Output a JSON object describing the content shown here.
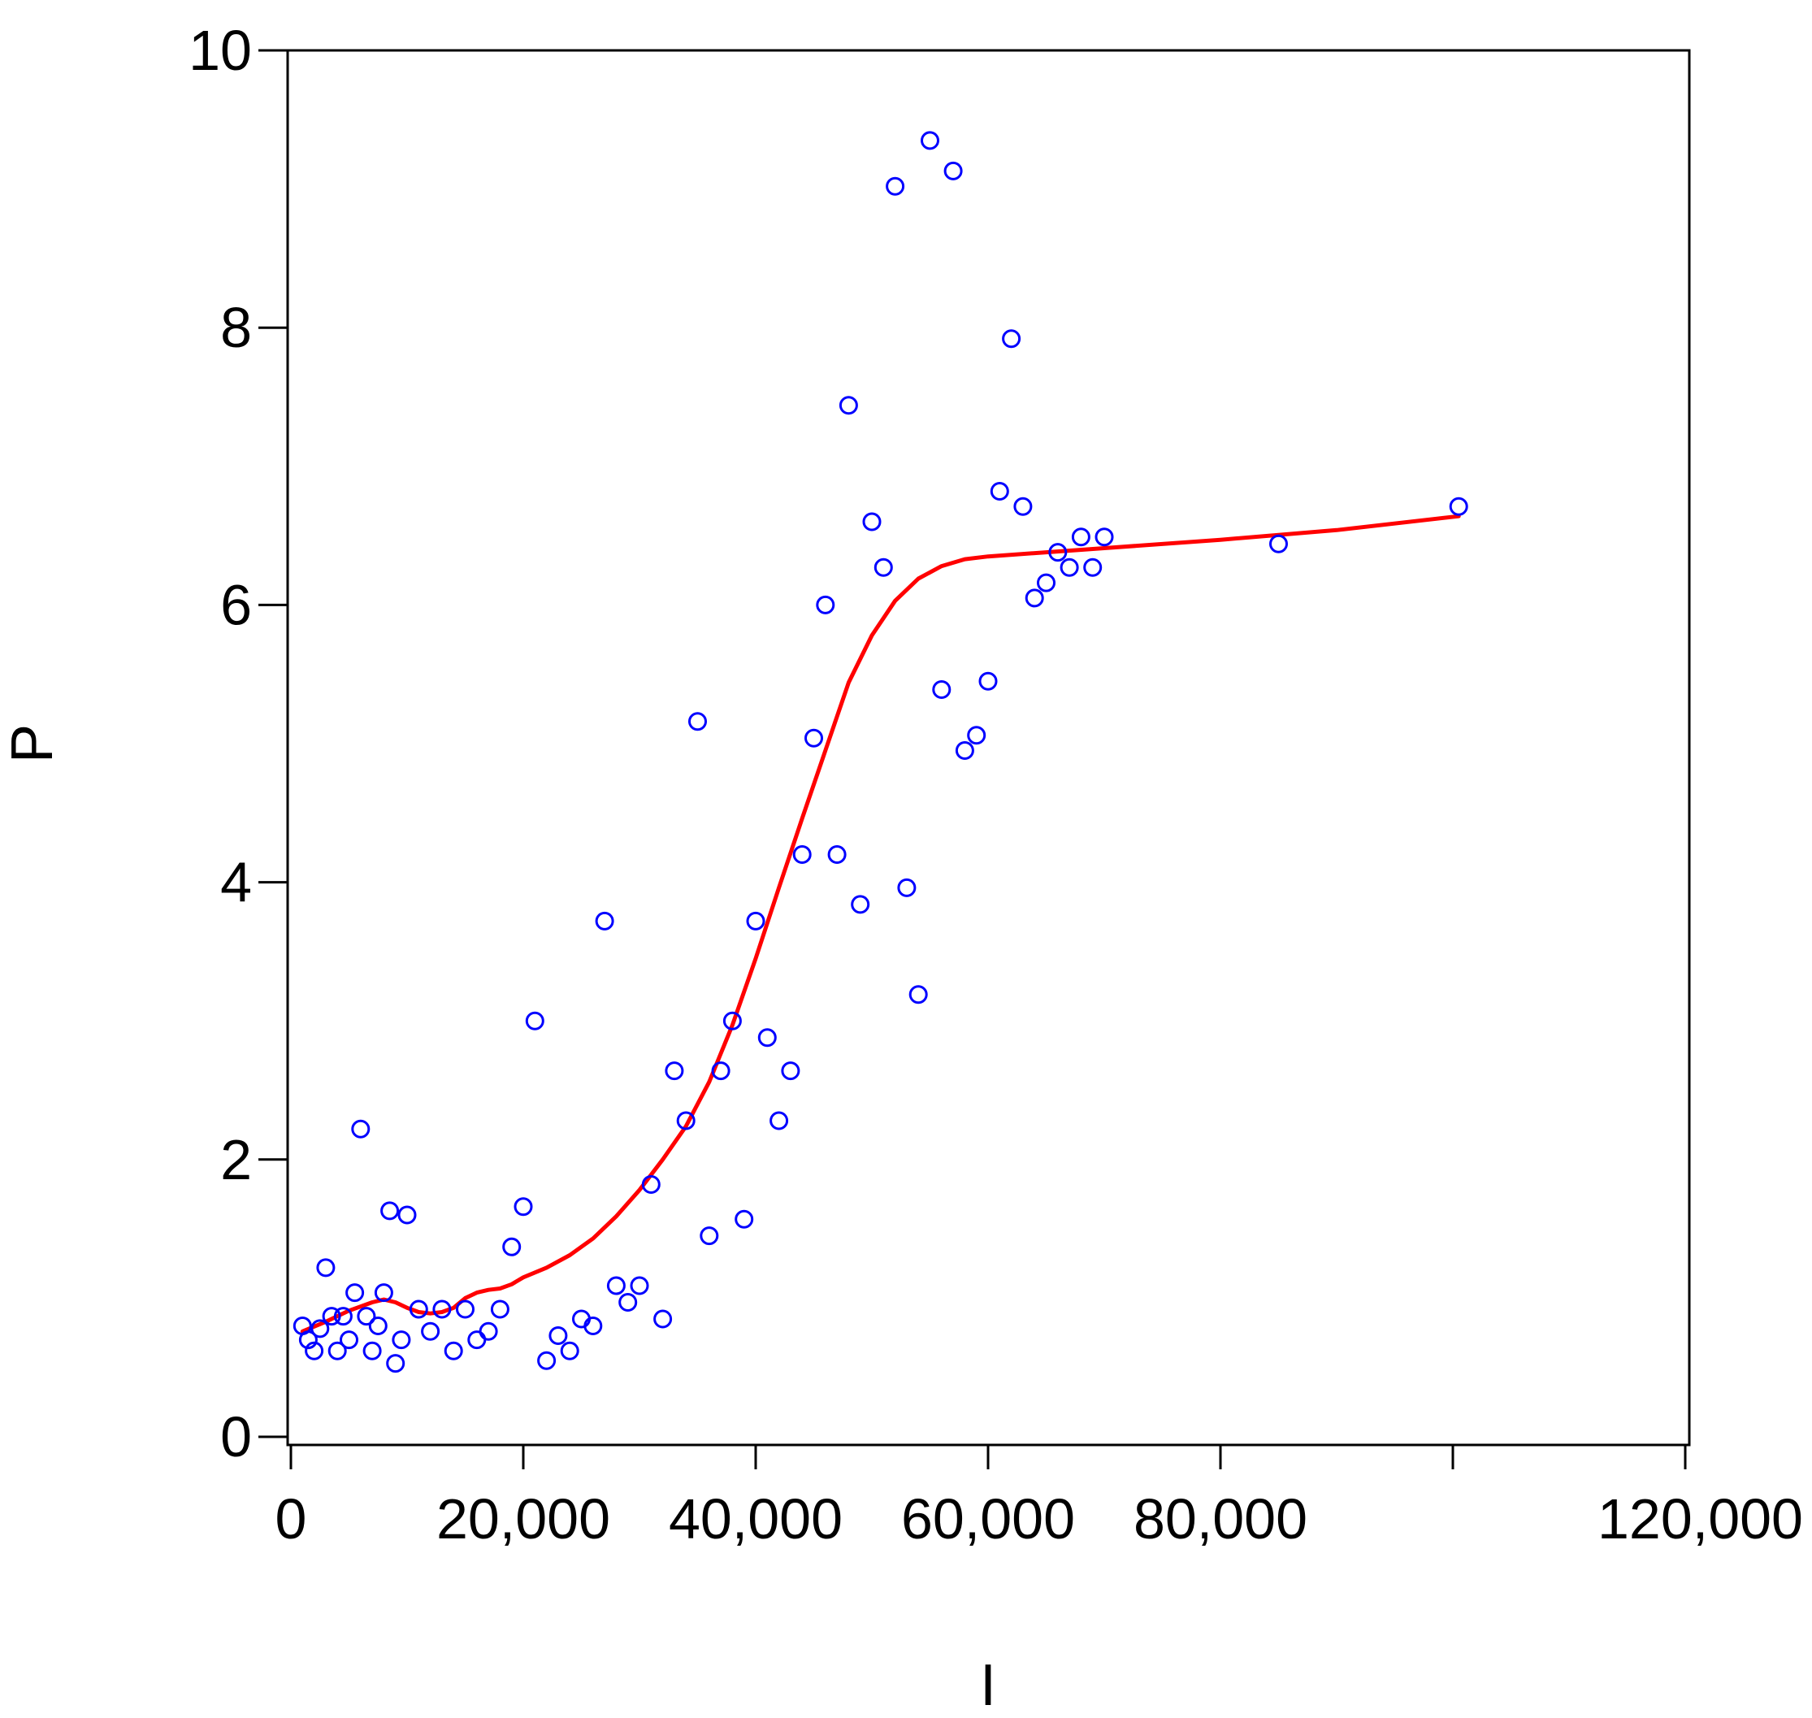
{
  "chart_data": {
    "type": "scatter",
    "title": "",
    "xlabel": "I",
    "ylabel": "P",
    "xlim": [
      0,
      120000
    ],
    "ylim": [
      0,
      10
    ],
    "x_ticks": [
      0,
      20000,
      40000,
      60000,
      80000,
      100000,
      120000
    ],
    "x_tick_labels": [
      "0",
      "20,000",
      "40,000",
      "60,000",
      "80,000",
      "",
      "120,000"
    ],
    "y_ticks": [
      0,
      2,
      4,
      6,
      8,
      10
    ],
    "y_tick_labels": [
      "0",
      "2",
      "4",
      "6",
      "8",
      "10"
    ],
    "grid": false,
    "colors": {
      "points": "#0000ff",
      "line": "#ff0000",
      "axes": "#000000"
    },
    "series": [
      {
        "kind": "scatter",
        "marker": "open-circle",
        "points": [
          [
            1000,
            0.8
          ],
          [
            1500,
            0.7
          ],
          [
            2000,
            0.62
          ],
          [
            2500,
            0.78
          ],
          [
            3000,
            1.22
          ],
          [
            3500,
            0.87
          ],
          [
            4000,
            0.62
          ],
          [
            4500,
            0.87
          ],
          [
            5000,
            0.7
          ],
          [
            5500,
            1.04
          ],
          [
            6000,
            2.22
          ],
          [
            6500,
            0.87
          ],
          [
            7000,
            0.62
          ],
          [
            7500,
            0.8
          ],
          [
            8000,
            1.04
          ],
          [
            8500,
            1.63
          ],
          [
            9000,
            0.53
          ],
          [
            9500,
            0.7
          ],
          [
            10000,
            1.6
          ],
          [
            11000,
            0.92
          ],
          [
            12000,
            0.76
          ],
          [
            13000,
            0.92
          ],
          [
            14000,
            0.62
          ],
          [
            15000,
            0.92
          ],
          [
            16000,
            0.7
          ],
          [
            17000,
            0.76
          ],
          [
            18000,
            0.92
          ],
          [
            19000,
            1.37
          ],
          [
            20000,
            1.66
          ],
          [
            21000,
            3.0
          ],
          [
            22000,
            0.55
          ],
          [
            23000,
            0.73
          ],
          [
            24000,
            0.62
          ],
          [
            25000,
            0.85
          ],
          [
            26000,
            0.8
          ],
          [
            27000,
            3.72
          ],
          [
            28000,
            1.09
          ],
          [
            29000,
            0.97
          ],
          [
            30000,
            1.09
          ],
          [
            31000,
            1.82
          ],
          [
            32000,
            0.85
          ],
          [
            33000,
            2.64
          ],
          [
            34000,
            2.28
          ],
          [
            35000,
            5.16
          ],
          [
            36000,
            1.45
          ],
          [
            37000,
            2.64
          ],
          [
            38000,
            3.0
          ],
          [
            39000,
            1.57
          ],
          [
            40000,
            3.72
          ],
          [
            41000,
            2.88
          ],
          [
            42000,
            2.28
          ],
          [
            43000,
            2.64
          ],
          [
            44000,
            4.2
          ],
          [
            45000,
            5.04
          ],
          [
            46000,
            6.0
          ],
          [
            47000,
            4.2
          ],
          [
            48000,
            7.44
          ],
          [
            49000,
            3.84
          ],
          [
            50000,
            6.6
          ],
          [
            51000,
            6.27
          ],
          [
            52000,
            9.02
          ],
          [
            53000,
            3.96
          ],
          [
            54000,
            3.19
          ],
          [
            55000,
            9.35
          ],
          [
            56000,
            5.39
          ],
          [
            57000,
            9.13
          ],
          [
            58000,
            4.95
          ],
          [
            59000,
            5.06
          ],
          [
            60000,
            5.45
          ],
          [
            61000,
            6.82
          ],
          [
            62000,
            7.92
          ],
          [
            63000,
            6.71
          ],
          [
            64000,
            6.05
          ],
          [
            65000,
            6.16
          ],
          [
            66000,
            6.38
          ],
          [
            67000,
            6.27
          ],
          [
            68000,
            6.49
          ],
          [
            69000,
            6.27
          ],
          [
            70000,
            6.49
          ],
          [
            85000,
            6.44
          ],
          [
            100500,
            6.71
          ]
        ]
      },
      {
        "kind": "line",
        "points": [
          [
            1000,
            0.76
          ],
          [
            3000,
            0.83
          ],
          [
            5000,
            0.91
          ],
          [
            7000,
            0.97
          ],
          [
            8000,
            0.99
          ],
          [
            9000,
            0.97
          ],
          [
            10000,
            0.93
          ],
          [
            11000,
            0.9
          ],
          [
            12000,
            0.89
          ],
          [
            13000,
            0.9
          ],
          [
            14000,
            0.93
          ],
          [
            15000,
            1.0
          ],
          [
            16000,
            1.04
          ],
          [
            17000,
            1.06
          ],
          [
            18000,
            1.07
          ],
          [
            19000,
            1.1
          ],
          [
            20000,
            1.15
          ],
          [
            22000,
            1.22
          ],
          [
            24000,
            1.31
          ],
          [
            26000,
            1.43
          ],
          [
            28000,
            1.59
          ],
          [
            30000,
            1.78
          ],
          [
            32000,
            2.0
          ],
          [
            34000,
            2.24
          ],
          [
            36000,
            2.56
          ],
          [
            38000,
            2.97
          ],
          [
            40000,
            3.45
          ],
          [
            42000,
            3.96
          ],
          [
            44000,
            4.46
          ],
          [
            46000,
            4.95
          ],
          [
            48000,
            5.44
          ],
          [
            50000,
            5.78
          ],
          [
            52000,
            6.03
          ],
          [
            54000,
            6.19
          ],
          [
            56000,
            6.28
          ],
          [
            58000,
            6.33
          ],
          [
            60000,
            6.35
          ],
          [
            65000,
            6.38
          ],
          [
            70000,
            6.41
          ],
          [
            80000,
            6.47
          ],
          [
            90000,
            6.54
          ],
          [
            100500,
            6.64
          ]
        ]
      }
    ]
  }
}
